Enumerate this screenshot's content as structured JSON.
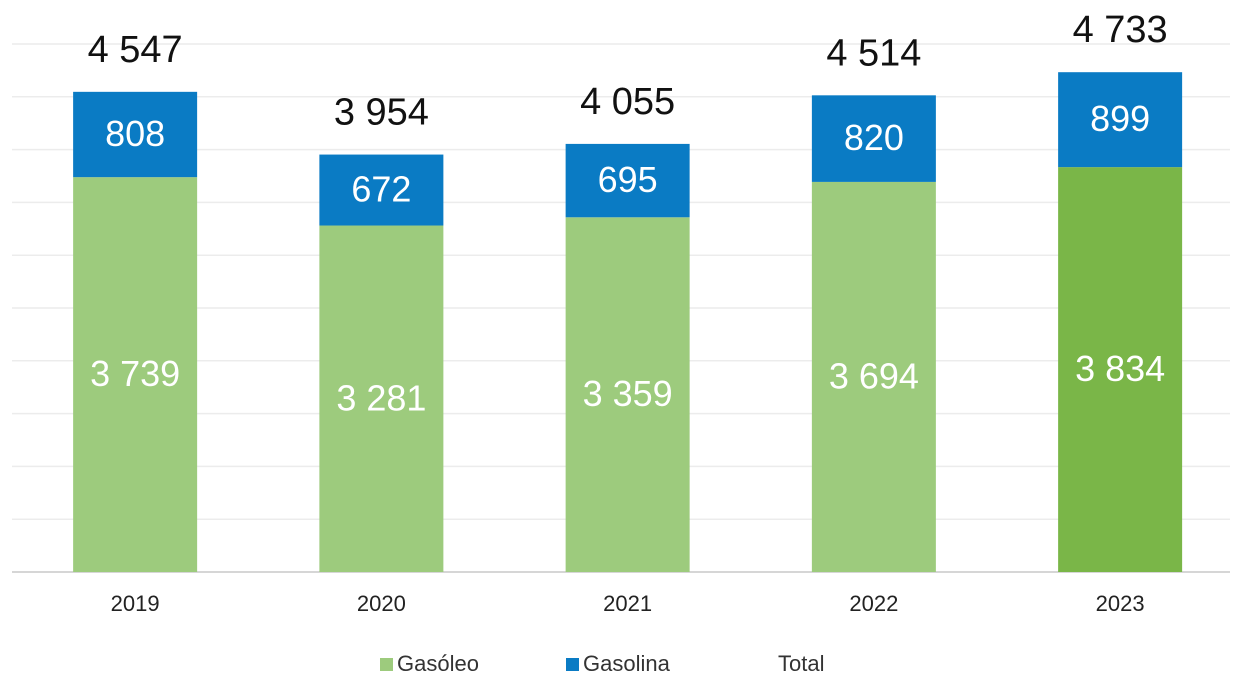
{
  "chart_data": {
    "type": "bar",
    "stacked": true,
    "categories": [
      "2019",
      "2020",
      "2021",
      "2022",
      "2023"
    ],
    "series": [
      {
        "name": "Gasóleo",
        "color": "#9dcb7d",
        "colors": [
          "#9dcb7d",
          "#9dcb7d",
          "#9dcb7d",
          "#9dcb7d",
          "#7ab648"
        ],
        "values": [
          3739,
          3281,
          3359,
          3694,
          3834
        ],
        "value_labels": [
          "3 739",
          "3 281",
          "3 359",
          "3 694",
          "3 834"
        ]
      },
      {
        "name": "Gasolina",
        "color": "#0a7bc4",
        "values": [
          808,
          672,
          695,
          820,
          899
        ],
        "value_labels": [
          "808",
          "672",
          "695",
          "820",
          "899"
        ]
      }
    ],
    "totals": {
      "name": "Total",
      "values": [
        4547,
        3954,
        4055,
        4514,
        4733
      ],
      "value_labels": [
        "4 547",
        "3 954",
        "4 055",
        "4 514",
        "4 733"
      ]
    },
    "ylim": [
      0,
      5000
    ],
    "yticks": [
      0,
      500,
      1000,
      1500,
      2000,
      2500,
      3000,
      3500,
      4000,
      4500,
      5000
    ],
    "grid": true
  }
}
